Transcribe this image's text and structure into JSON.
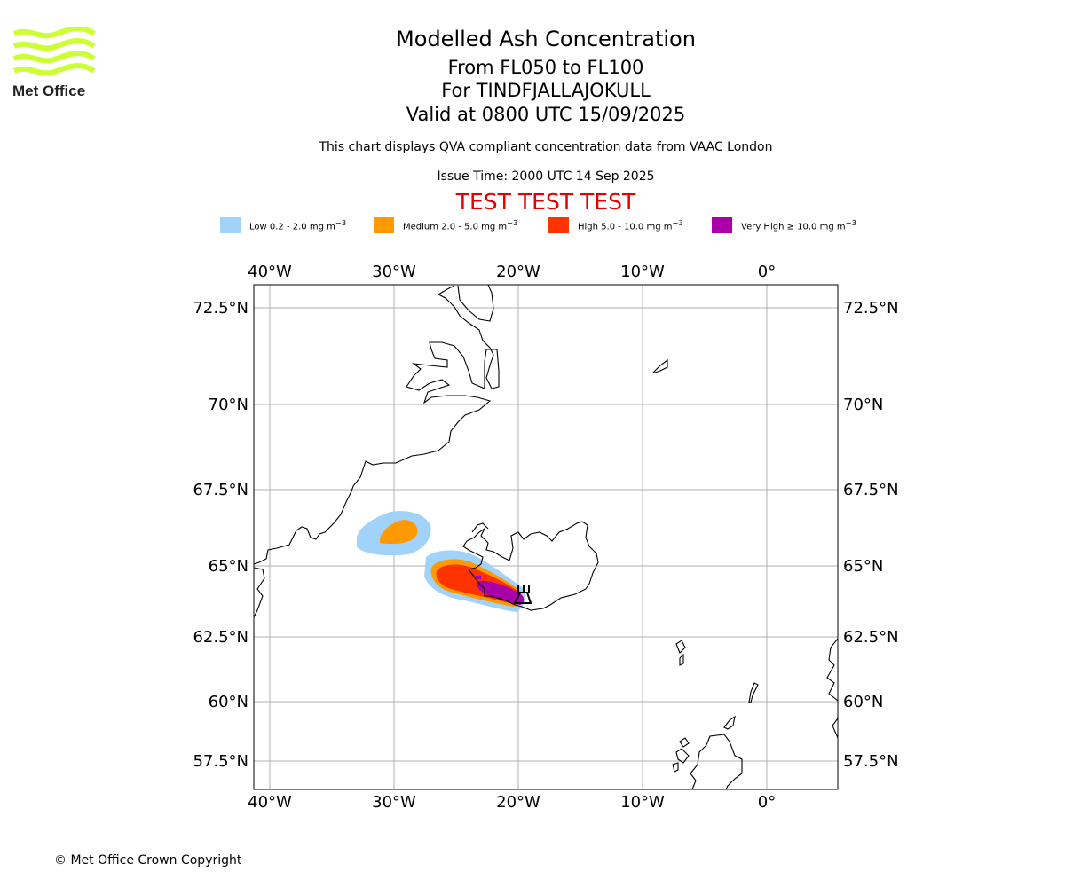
{
  "logo": {
    "text": "Met Office",
    "color": "#ccff33"
  },
  "header": {
    "title": "Modelled Ash Concentration",
    "levels": "From FL050 to FL100",
    "volcano": "For TINDFJALLAJOKULL",
    "valid": "Valid at 0800 UTC 15/09/2025",
    "compliance": "This chart displays QVA compliant concentration data from VAAC London",
    "issue_time": "Issue Time: 2000 UTC 14 Sep 2025",
    "test_banner": "TEST TEST TEST"
  },
  "legend": [
    {
      "label": "Low 0.2 - 2.0 mg m",
      "color": "#a0d2fa"
    },
    {
      "label": "Medium 2.0 - 5.0 mg m",
      "color": "#ff9900"
    },
    {
      "label": "High 5.0 - 10.0 mg m",
      "color": "#ff3300"
    },
    {
      "label": "Very High  ≥  10.0 mg m",
      "color": "#aa00aa"
    }
  ],
  "legend_unit_exponent": "−3",
  "map": {
    "lon_labels": [
      "40°W",
      "30°W",
      "20°W",
      "10°W",
      "0°"
    ],
    "lat_labels": [
      "72.5°N",
      "70°N",
      "67.5°N",
      "65°N",
      "62.5°N",
      "60°N",
      "57.5°N"
    ]
  },
  "footer": {
    "copyright": "© Met Office Crown Copyright"
  }
}
